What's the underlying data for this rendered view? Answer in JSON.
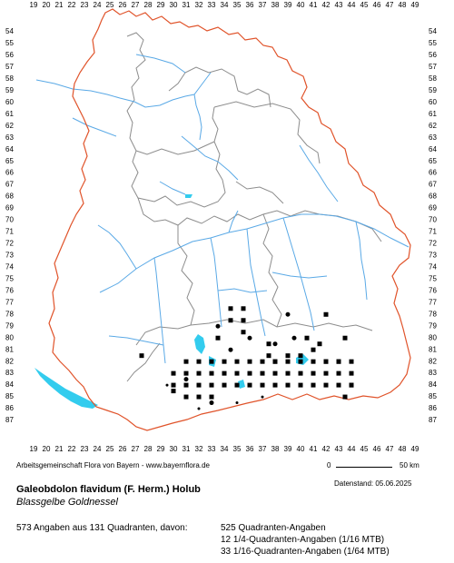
{
  "map": {
    "x_ticks": [
      "19",
      "20",
      "21",
      "22",
      "23",
      "24",
      "25",
      "26",
      "27",
      "28",
      "29",
      "30",
      "31",
      "32",
      "33",
      "34",
      "35",
      "36",
      "37",
      "38",
      "39",
      "40",
      "41",
      "42",
      "43",
      "44",
      "45",
      "46",
      "47",
      "48",
      "49"
    ],
    "y_ticks": [
      "54",
      "55",
      "56",
      "57",
      "58",
      "59",
      "60",
      "61",
      "62",
      "63",
      "64",
      "65",
      "66",
      "67",
      "68",
      "69",
      "70",
      "71",
      "72",
      "73",
      "74",
      "75",
      "76",
      "77",
      "78",
      "79",
      "80",
      "81",
      "82",
      "83",
      "84",
      "85",
      "86",
      "87"
    ],
    "colors": {
      "border_state": "#e0532a",
      "border_district": "#8c8c8c",
      "rivers": "#5aa9e6",
      "lakes": "#33ccee",
      "markers": "#000000"
    },
    "marker_legend": {
      "square": "Quadranten-Angabe",
      "circle": "1/4-Quadranten-Angabe",
      "small-dot": "1/16-Quadranten-Angabe"
    }
  },
  "credit": "Arbeitsgemeinschaft Flora von Bayern - www.bayernflora.de",
  "scale": {
    "start": "0",
    "end": "50 km"
  },
  "datestand": "Datenstand: 05.06.2025",
  "species": {
    "scientific": "Galeobdolon flavidum (F. Herm.) Holub",
    "common": "Blassgelbe Goldnessel"
  },
  "stats": {
    "summary": "573 Angaben aus 131 Quadranten, davon:",
    "quadrant": "525 Quadranten-Angaben",
    "quarter": "12 1/4-Quadranten-Angaben (1/16 MTB)",
    "sixteenth": "33 1/16-Quadranten-Angaben (1/64 MTB)"
  }
}
